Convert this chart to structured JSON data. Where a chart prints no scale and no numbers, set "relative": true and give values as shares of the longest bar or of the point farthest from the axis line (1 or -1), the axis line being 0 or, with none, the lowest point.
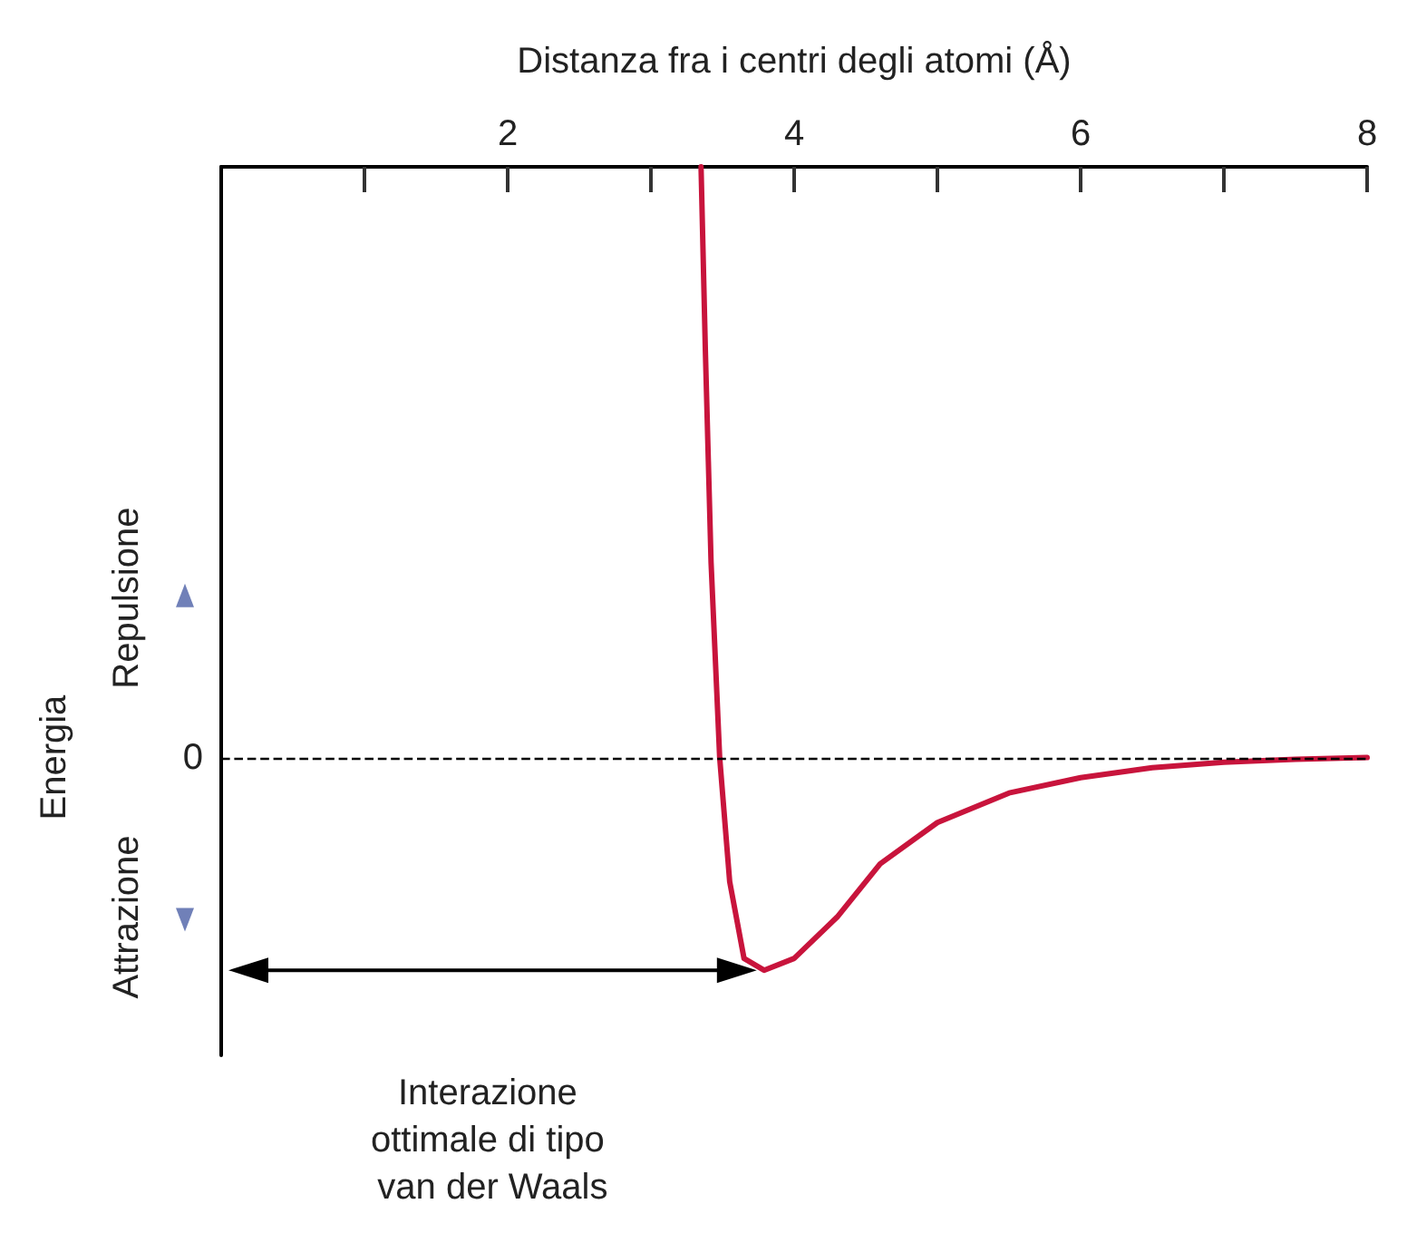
{
  "chart_data": {
    "type": "line",
    "relative": true,
    "xlabel": "Distanza fra i centri degli atomi (Å)",
    "ylabel": "Energia",
    "xlim": [
      0,
      8
    ],
    "xticks": [
      {
        "value": 1,
        "label": null
      },
      2,
      {
        "value": 3,
        "label": null
      },
      4,
      {
        "value": 5,
        "label": null
      },
      6,
      {
        "value": 7,
        "label": null
      },
      8
    ],
    "tick_labels": "x",
    "grid": false,
    "marker": "none",
    "line_style": "solid",
    "series": [
      {
        "color": "#c8143c",
        "x": [
          3.35,
          3.38,
          3.42,
          3.48,
          3.55,
          3.65,
          3.79,
          4.0,
          4.3,
          4.6,
          5.0,
          5.5,
          6.0,
          6.5,
          7.0,
          7.5,
          8.0
        ],
        "values": [
          1,
          0.69,
          0.33,
          0,
          -0.21,
          -0.34,
          -0.36,
          -0.34,
          -0.27,
          -0.18,
          -0.11,
          -0.06,
          -0.034,
          -0.017,
          -0.008,
          -0.003,
          0
        ]
      }
    ],
    "ref_lines": [
      {
        "axis": "y",
        "value": 0,
        "label": "0",
        "line_style": "dashed",
        "color": "#000000"
      }
    ],
    "annotations": [
      "Repulsione",
      "Attrazione",
      "Interazione ottimale di tipo van der Waals"
    ]
  }
}
